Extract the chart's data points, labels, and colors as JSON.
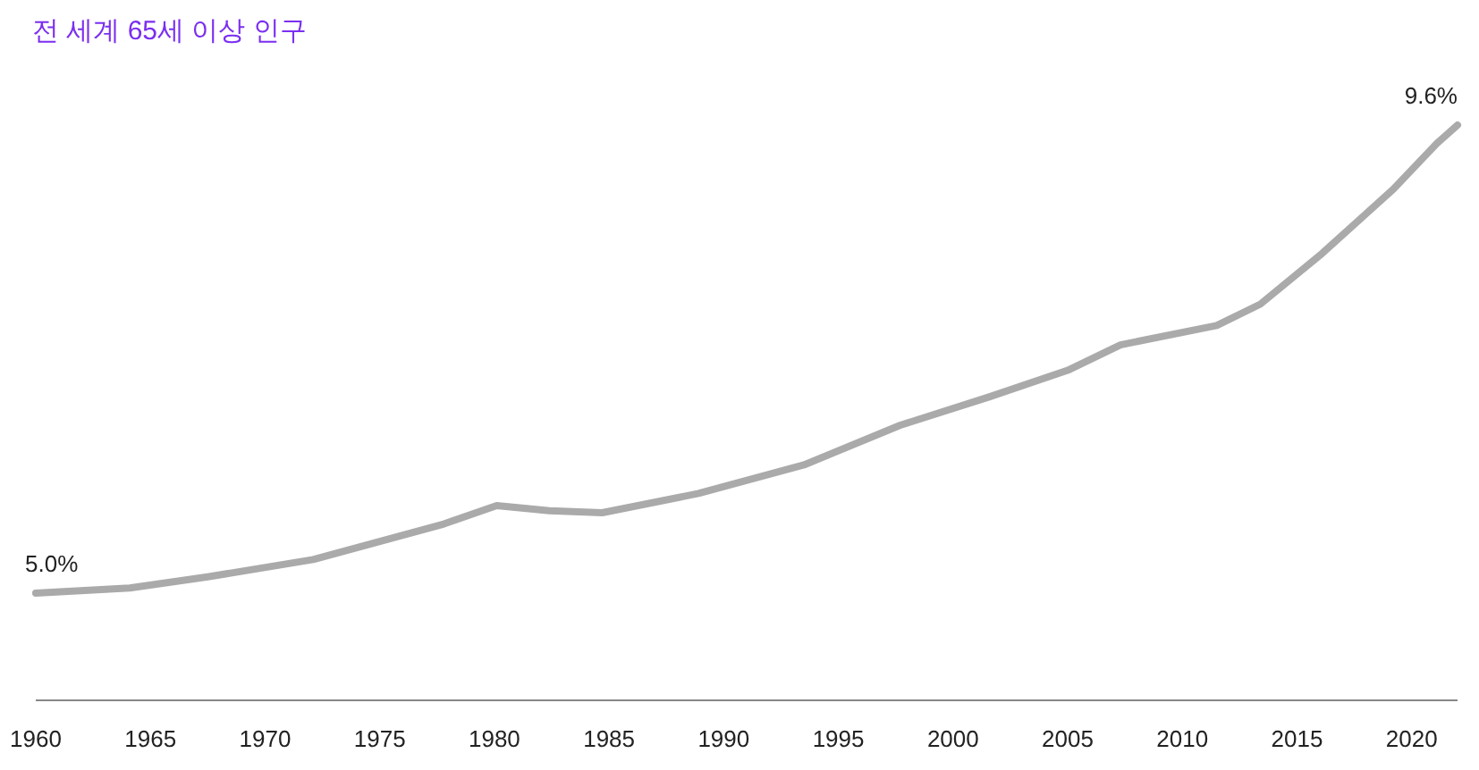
{
  "chart_data": {
    "type": "line",
    "title": "전 세계 65세 이상 인구",
    "x": [
      1960,
      1964.1,
      1967.5,
      1972.1,
      1977.8,
      1980.1,
      1982.4,
      1984.7,
      1988.9,
      1993.5,
      1997.7,
      2001.6,
      2005.0,
      2007.3,
      2011.5,
      2013.4,
      2016.1,
      2019.2,
      2021.1,
      2022
    ],
    "series": [
      {
        "color": "#aaaaaa",
        "values": [
          5.0,
          5.05,
          5.16,
          5.33,
          5.68,
          5.86,
          5.81,
          5.79,
          5.98,
          6.26,
          6.65,
          6.93,
          7.19,
          7.44,
          7.63,
          7.84,
          8.34,
          8.97,
          9.42,
          9.6
        ],
        "value_labels": [
          "5.0%",
          null,
          null,
          null,
          null,
          null,
          null,
          null,
          null,
          null,
          null,
          null,
          null,
          null,
          null,
          null,
          null,
          null,
          null,
          "9.6%"
        ]
      }
    ],
    "xlim": [
      1960,
      2022
    ],
    "xticks": [
      1960,
      1965,
      1970,
      1975,
      1980,
      1985,
      1990,
      1995,
      2000,
      2005,
      2010,
      2015,
      2020
    ],
    "tick_labels": "x",
    "grid": false
  }
}
